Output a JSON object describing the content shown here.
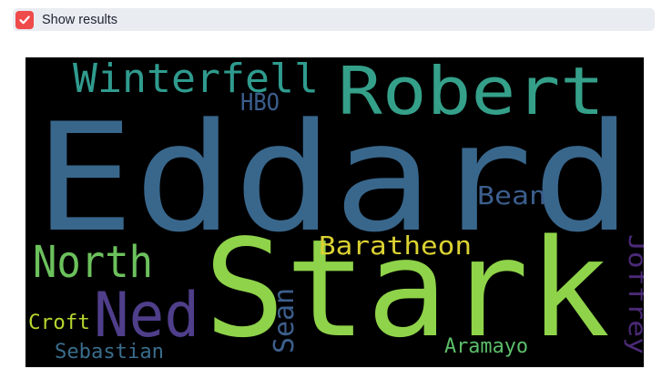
{
  "checkbox": {
    "label": "Show results",
    "checked": true,
    "color": "#ef4b4b"
  },
  "wordcloud": {
    "background": "#000000",
    "words": [
      {
        "text": "Eddard",
        "color": "#39678c"
      },
      {
        "text": "Stark",
        "color": "#8fd34a"
      },
      {
        "text": "Robert",
        "color": "#35a08a"
      },
      {
        "text": "Winterfell",
        "color": "#2f9b8e"
      },
      {
        "text": "Ned",
        "color": "#4f3e8a"
      },
      {
        "text": "North",
        "color": "#6cc15c"
      },
      {
        "text": "Baratheon",
        "color": "#dbd232"
      },
      {
        "text": "HBO",
        "color": "#3b5e8d"
      },
      {
        "text": "Bean",
        "color": "#3b5e8d"
      },
      {
        "text": "Sean",
        "color": "#3d5f8c"
      },
      {
        "text": "Joffrey",
        "color": "#4b2a77"
      },
      {
        "text": "Croft",
        "color": "#b5d62f"
      },
      {
        "text": "Sebastian",
        "color": "#3a6d8c"
      },
      {
        "text": "Aramayo",
        "color": "#5cbf6a"
      }
    ]
  }
}
